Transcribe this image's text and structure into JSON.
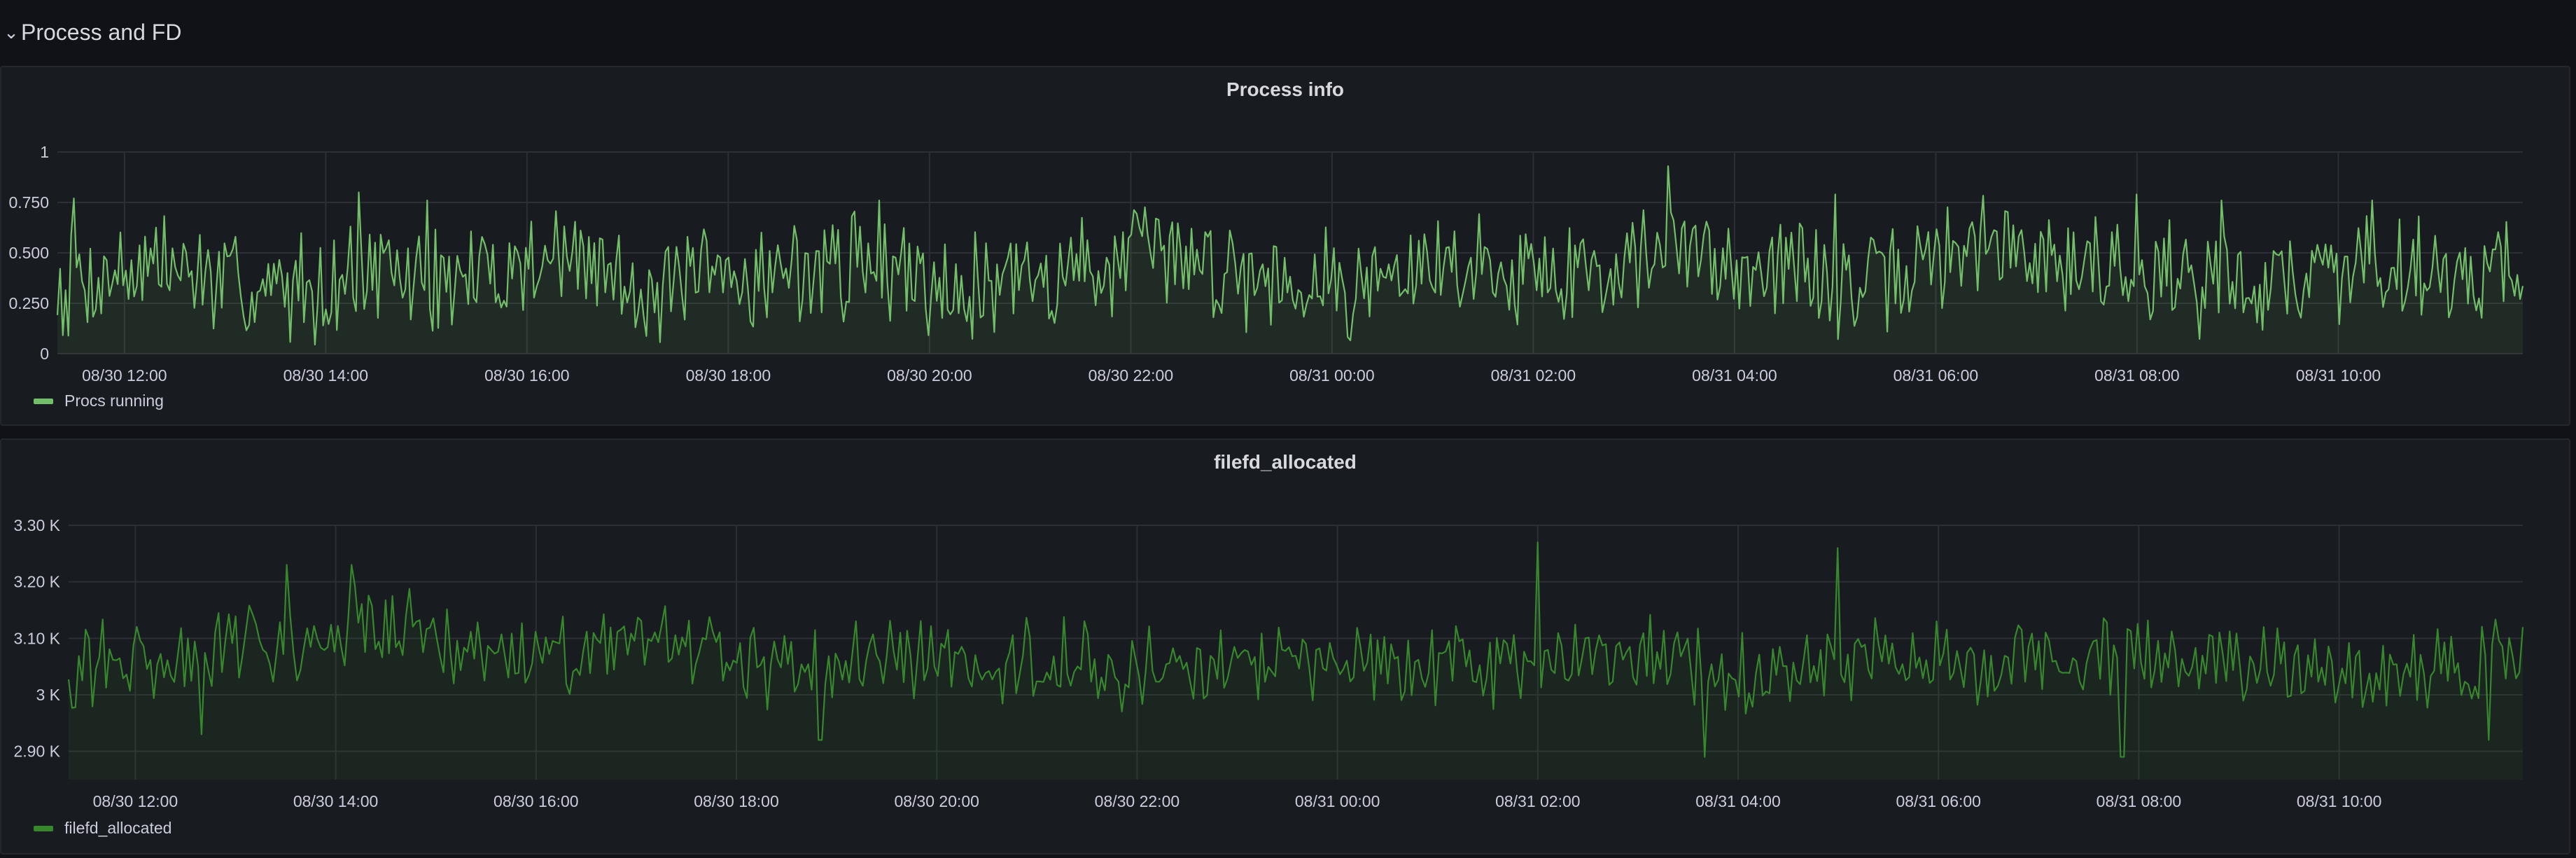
{
  "row": {
    "title": "Process and FD",
    "chevron": "chevron-down-icon"
  },
  "colors": {
    "background": "#111217",
    "panel": "#181b1f",
    "grid": "#2c2f35",
    "series1": "#73bf69",
    "series2": "#37872d"
  },
  "chart_data": [
    {
      "type": "area",
      "title": "Process info",
      "ylim": [
        0,
        1
      ],
      "yticks": [
        0,
        0.25,
        0.5,
        0.75,
        1
      ],
      "ytick_labels": [
        "0",
        "0.250",
        "0.500",
        "0.750",
        "1"
      ],
      "xlim": [
        "08/30 11:20",
        "08/31 11:50"
      ],
      "xtick_labels": [
        "08/30 12:00",
        "08/30 14:00",
        "08/30 16:00",
        "08/30 18:00",
        "08/30 20:00",
        "08/30 22:00",
        "08/31 00:00",
        "08/31 02:00",
        "08/31 04:00",
        "08/31 06:00",
        "08/31 08:00",
        "08/31 10:00"
      ],
      "grid": true,
      "legend_placement": "bottom-left",
      "series": [
        {
          "name": "Procs running",
          "color": "#73bf69",
          "sample_interval_minutes": 60,
          "values": [
            0.35,
            0.45,
            0.3,
            0.4,
            0.35,
            0.5,
            0.3,
            0.4,
            0.45,
            0.35,
            0.4,
            0.5,
            0.4,
            0.35,
            0.45,
            0.4,
            0.5,
            0.45,
            0.3,
            0.55,
            0.45,
            0.4,
            0.35,
            0.45,
            0.4,
            0.5
          ]
        }
      ],
      "peaks": [
        {
          "x": "08/30 11:30",
          "y": 0.77
        },
        {
          "x": "08/30 14:20",
          "y": 0.8
        },
        {
          "x": "08/30 15:00",
          "y": 0.76
        },
        {
          "x": "08/30 19:30",
          "y": 0.76
        },
        {
          "x": "08/31 03:20",
          "y": 0.93
        },
        {
          "x": "08/31 05:00",
          "y": 0.79
        },
        {
          "x": "08/31 08:00",
          "y": 0.79
        },
        {
          "x": "08/31 08:50",
          "y": 0.76
        },
        {
          "x": "08/31 10:20",
          "y": 0.76
        }
      ]
    },
    {
      "type": "area",
      "title": "filefd_allocated",
      "ylim": [
        2850,
        3300
      ],
      "yticks": [
        2900,
        3000,
        3100,
        3200,
        3300
      ],
      "ytick_labels": [
        "2.90 K",
        "3 K",
        "3.10 K",
        "3.20 K",
        "3.30 K"
      ],
      "xlim": [
        "08/30 11:20",
        "08/31 11:50"
      ],
      "xtick_labels": [
        "08/30 12:00",
        "08/30 14:00",
        "08/30 16:00",
        "08/30 18:00",
        "08/30 20:00",
        "08/30 22:00",
        "08/31 00:00",
        "08/31 02:00",
        "08/31 04:00",
        "08/31 06:00",
        "08/31 08:00",
        "08/31 10:00"
      ],
      "grid": true,
      "legend_placement": "bottom-left",
      "series": [
        {
          "name": "filefd_allocated",
          "color": "#37872d",
          "sample_interval_minutes": 60,
          "values": [
            3050,
            3060,
            3100,
            3120,
            3080,
            3060,
            3090,
            3040,
            3070,
            3050,
            3060,
            3040,
            3050,
            3060,
            3050,
            3060,
            3060,
            3040,
            3080,
            3050,
            3060,
            3070,
            3050,
            3040,
            3060,
            3050
          ]
        }
      ],
      "peaks": [
        {
          "x": "08/30 12:40",
          "y": 2930
        },
        {
          "x": "08/30 13:30",
          "y": 3230
        },
        {
          "x": "08/30 14:10",
          "y": 3230
        },
        {
          "x": "08/30 18:50",
          "y": 2920
        },
        {
          "x": "08/31 02:00",
          "y": 3270
        },
        {
          "x": "08/31 03:40",
          "y": 2890
        },
        {
          "x": "08/31 05:00",
          "y": 3260
        },
        {
          "x": "08/31 07:50",
          "y": 2890
        },
        {
          "x": "08/31 11:30",
          "y": 2920
        }
      ]
    }
  ]
}
